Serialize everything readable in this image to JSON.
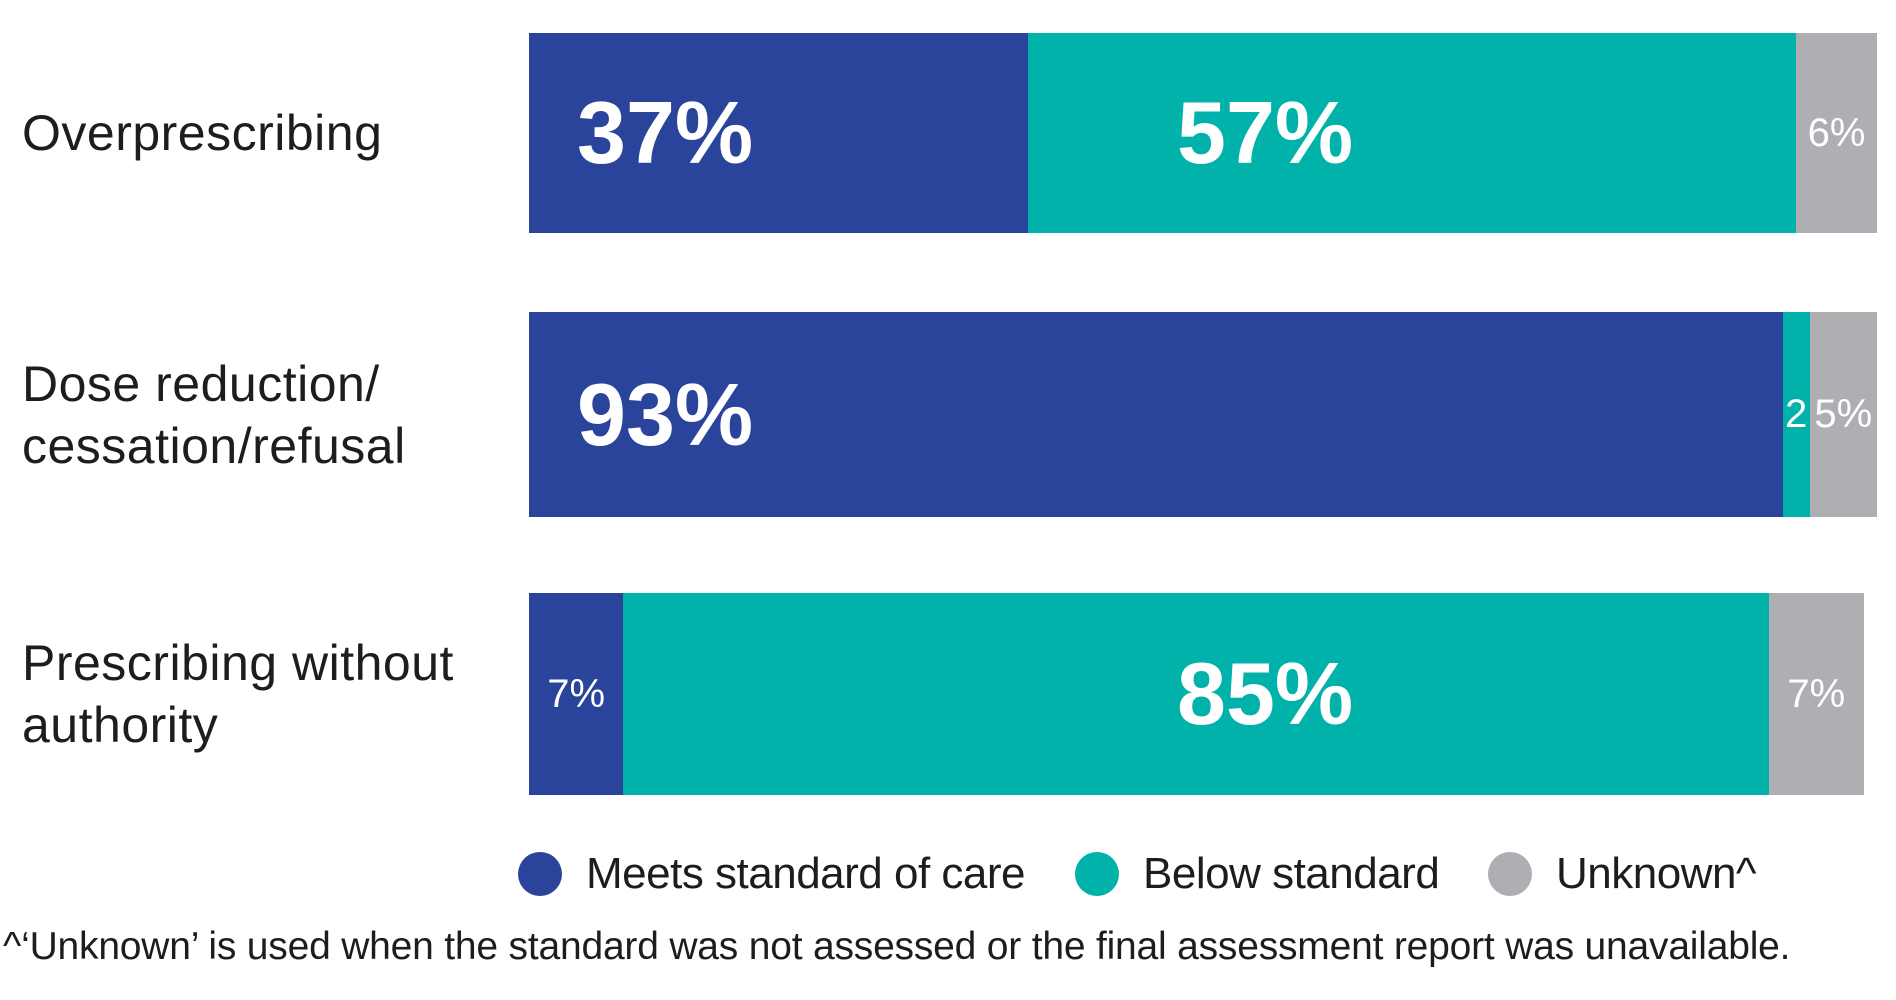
{
  "chart_data": {
    "type": "bar",
    "variant": "horizontal-stacked",
    "unit": "percent",
    "xlim": [
      0,
      100
    ],
    "grid": false,
    "axis": "none",
    "legend_position": "bottom",
    "categories": [
      "Overprescribing",
      "Dose reduction/cessation/refusal",
      "Prescribing without authority"
    ],
    "category_lines": [
      [
        "Overprescribing"
      ],
      [
        "Dose reduction/",
        "cessation/refusal"
      ],
      [
        "Prescribing without",
        "authority"
      ]
    ],
    "series": [
      {
        "name": "Meets standard of care",
        "color": "#2A439B",
        "values": [
          37,
          93,
          7
        ]
      },
      {
        "name": "Below standard",
        "color": "#00B2A9",
        "values": [
          57,
          2,
          85
        ]
      },
      {
        "name": "Unknown^",
        "color": "#AFAEB2",
        "values": [
          6,
          5,
          7
        ]
      }
    ],
    "value_labels": [
      [
        "37%",
        "57%",
        "6%"
      ],
      [
        "93%",
        "2",
        "5%"
      ],
      [
        "7%",
        "85%",
        "7%"
      ]
    ]
  },
  "footnote": "^‘Unknown’ is used when the standard was not assessed or the final assessment report was unavailable.",
  "colors": {
    "background": "#FFFFFF",
    "text": "#1D1D1F",
    "value_label_text": "#FFFFFF",
    "meets_standard_blue": "#2A439B",
    "below_standard_teal": "#00B2A9",
    "unknown_gray": "#AFAEB2"
  }
}
